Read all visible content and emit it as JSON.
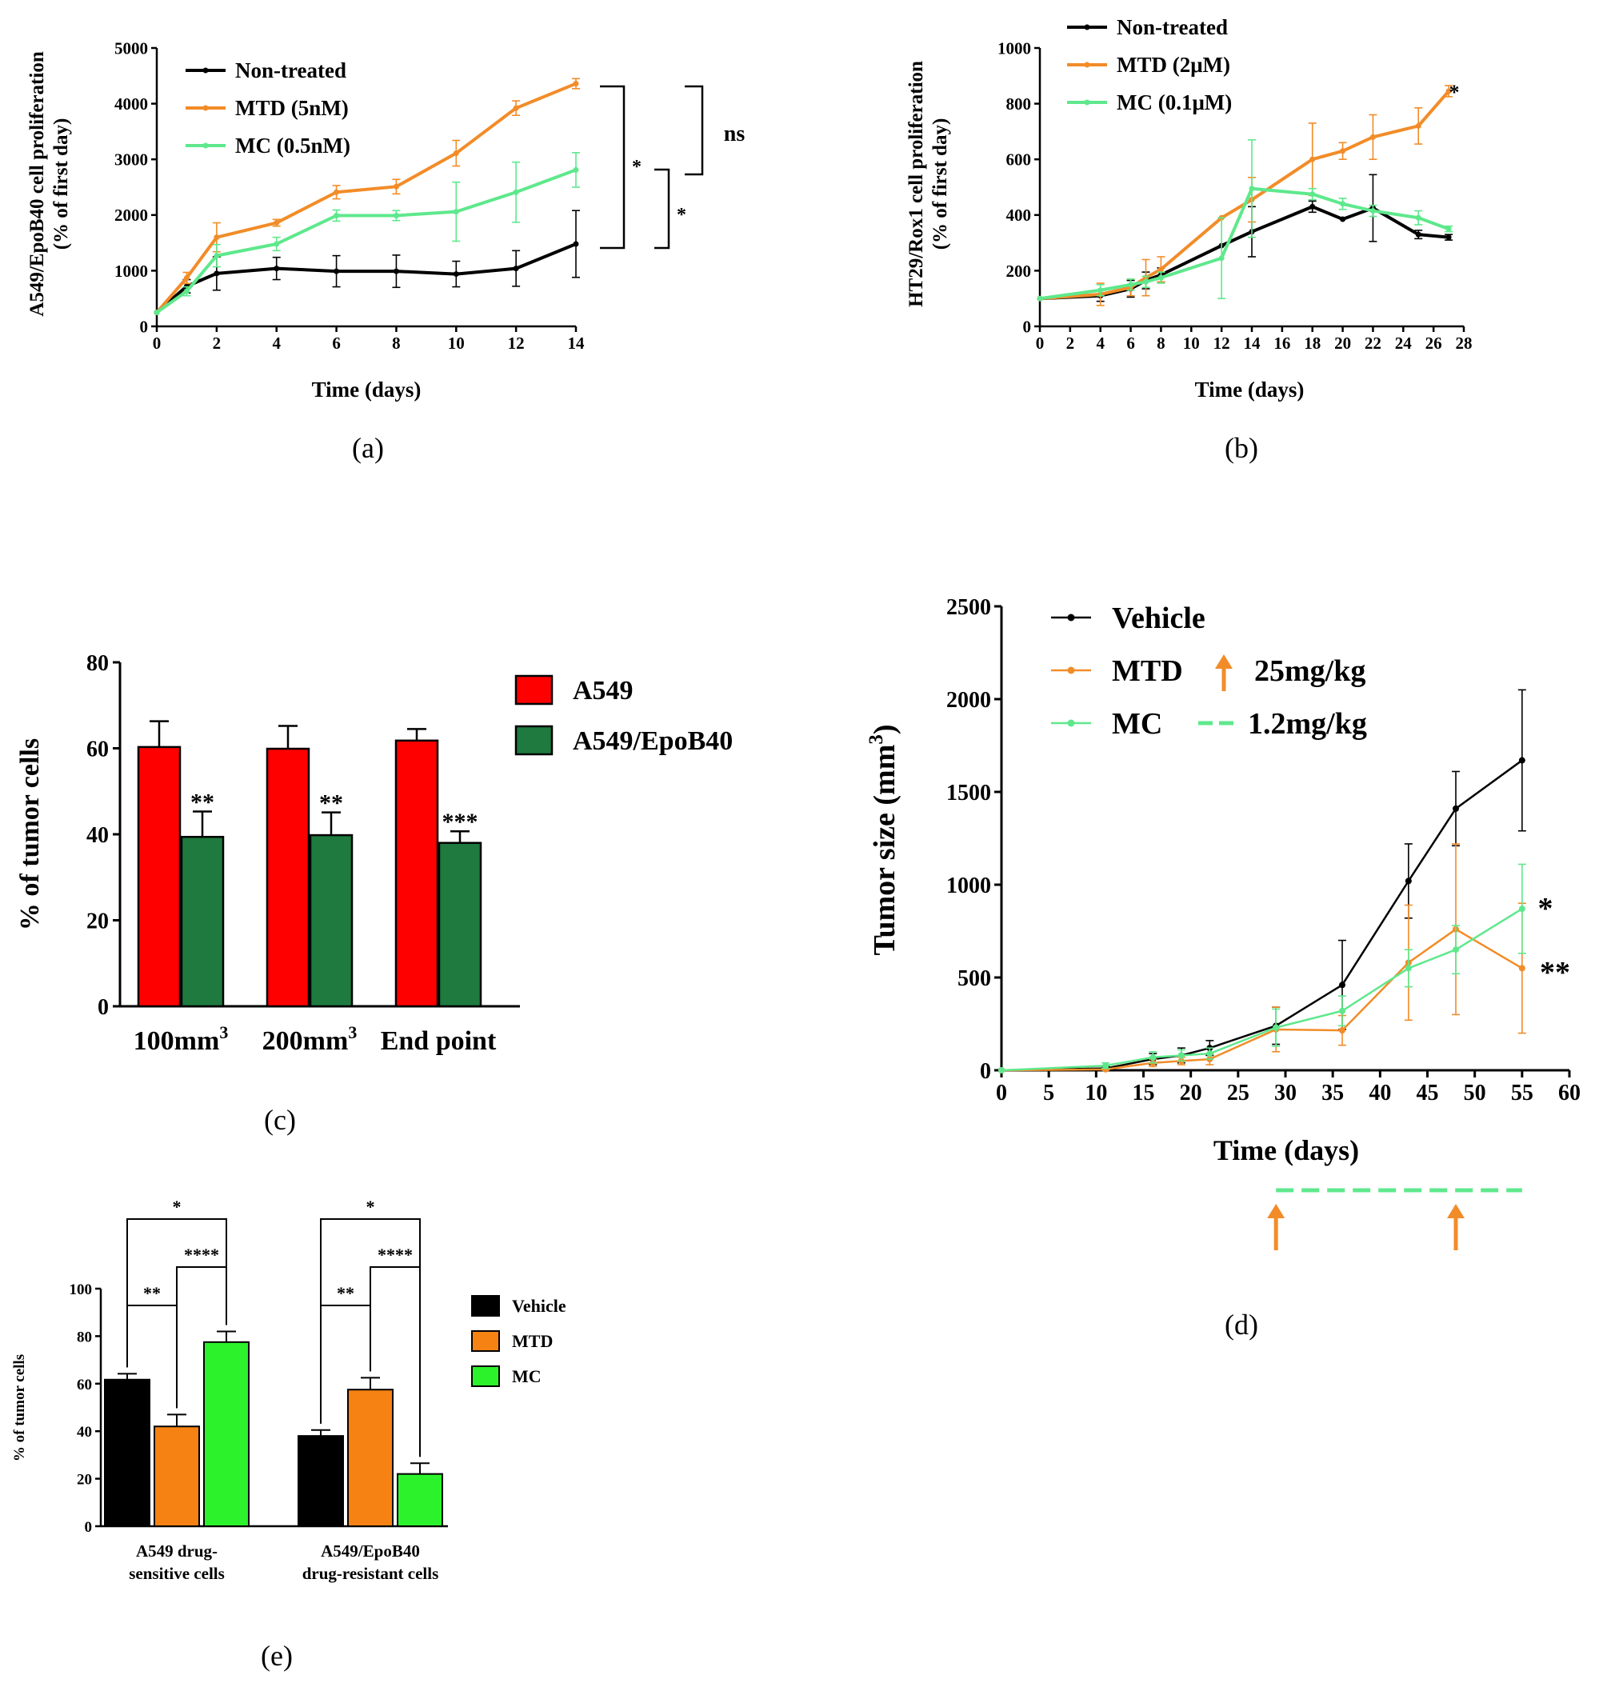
{
  "colors": {
    "black": "#000000",
    "orange": "#f28c28",
    "green_line": "#5ee88c",
    "red": "#ff0000",
    "dark_green": "#1e7a3e",
    "bright_green": "#2cf22c",
    "bar_orange": "#f58212"
  },
  "chart_data": [
    {
      "id": "a",
      "type": "line",
      "caption": "(a)",
      "xlabel": "Time (days)",
      "ylabel_lines": [
        "A549/EpoB40 cell proliferation",
        "(% of first day)"
      ],
      "xlim": [
        0,
        14
      ],
      "ylim": [
        0,
        5000
      ],
      "xticks": [
        0,
        2,
        4,
        6,
        8,
        10,
        12,
        14
      ],
      "yticks": [
        0,
        1000,
        2000,
        3000,
        4000,
        5000
      ],
      "series": [
        {
          "name": "Non-treated",
          "color": "#000000",
          "x": [
            0,
            1,
            2,
            4,
            6,
            8,
            10,
            12,
            14
          ],
          "y": [
            250,
            720,
            950,
            1040,
            990,
            990,
            940,
            1040,
            1480
          ],
          "err": [
            0,
            120,
            300,
            200,
            280,
            290,
            230,
            320,
            600
          ]
        },
        {
          "name": "MTD (5nM)",
          "color": "#f28c28",
          "x": [
            0,
            1,
            2,
            4,
            6,
            8,
            10,
            12,
            14
          ],
          "y": [
            250,
            870,
            1600,
            1860,
            2410,
            2510,
            3110,
            3920,
            4360
          ],
          "err": [
            0,
            100,
            260,
            60,
            120,
            130,
            230,
            130,
            90
          ]
        },
        {
          "name": "MC (0.5nM)",
          "color": "#5ee88c",
          "x": [
            0,
            1,
            2,
            4,
            6,
            8,
            10,
            12,
            14
          ],
          "y": [
            250,
            630,
            1270,
            1480,
            1990,
            1990,
            2060,
            2410,
            2810
          ],
          "err": [
            0,
            80,
            200,
            120,
            100,
            90,
            530,
            540,
            310
          ]
        }
      ],
      "annotations": [
        "*",
        "*",
        "ns"
      ]
    },
    {
      "id": "b",
      "type": "line",
      "caption": "(b)",
      "xlabel": "Time (days)",
      "ylabel_lines": [
        "HT29/Rox1 cell proliferation",
        "(% of first day)"
      ],
      "xlim": [
        0,
        28
      ],
      "ylim": [
        0,
        1000
      ],
      "xticks": [
        0,
        2,
        4,
        6,
        8,
        10,
        12,
        14,
        16,
        18,
        20,
        22,
        24,
        26,
        28
      ],
      "yticks": [
        0,
        200,
        400,
        600,
        800,
        1000
      ],
      "series": [
        {
          "name": "Non-treated",
          "color": "#000000",
          "x": [
            0,
            4,
            6,
            7,
            8,
            12,
            14,
            18,
            20,
            22,
            25,
            27
          ],
          "y": [
            100,
            110,
            135,
            165,
            185,
            290,
            340,
            430,
            385,
            425,
            330,
            320
          ],
          "err": [
            0,
            20,
            30,
            30,
            25,
            0,
            90,
            20,
            0,
            120,
            15,
            10
          ]
        },
        {
          "name": "MTD (2μM)",
          "color": "#f28c28",
          "x": [
            0,
            4,
            6,
            7,
            8,
            12,
            14,
            18,
            20,
            22,
            25,
            27
          ],
          "y": [
            100,
            115,
            140,
            175,
            205,
            390,
            455,
            600,
            630,
            680,
            720,
            845
          ],
          "err": [
            0,
            40,
            30,
            65,
            45,
            0,
            80,
            130,
            30,
            80,
            65,
            20
          ]
        },
        {
          "name": "MC (0.1μM)",
          "color": "#5ee88c",
          "x": [
            0,
            4,
            6,
            7,
            8,
            12,
            14,
            18,
            20,
            22,
            25,
            27
          ],
          "y": [
            100,
            130,
            150,
            160,
            175,
            245,
            495,
            475,
            440,
            415,
            390,
            350
          ],
          "err": [
            0,
            20,
            20,
            20,
            20,
            145,
            175,
            20,
            20,
            20,
            25,
            10
          ]
        }
      ],
      "annotations": [
        "*"
      ]
    },
    {
      "id": "c",
      "type": "bar",
      "caption": "(c)",
      "ylabel": "% of tumor cells",
      "categories": [
        "100mm",
        "200mm",
        "End point"
      ],
      "category_sup": [
        "3",
        "3",
        ""
      ],
      "ylim": [
        0,
        80
      ],
      "yticks": [
        0,
        20,
        40,
        60,
        80
      ],
      "series": [
        {
          "name": "A549",
          "color": "#ff0000",
          "values": [
            60.3,
            59.9,
            61.8
          ],
          "err": [
            6.0,
            5.3,
            2.7
          ]
        },
        {
          "name": "A549/EpoB40",
          "color": "#1e7a3e",
          "values": [
            39.4,
            39.8,
            38.0
          ],
          "err": [
            5.9,
            5.3,
            2.7
          ]
        }
      ],
      "annotations": [
        "**",
        "**",
        "***"
      ]
    },
    {
      "id": "d",
      "type": "line",
      "caption": "(d)",
      "xlabel": "Time (days)",
      "ylabel": "Tumor size (mm",
      "ylabel_sup": "3",
      "ylabel_close": ")",
      "xlim": [
        0,
        60
      ],
      "ylim": [
        0,
        2500
      ],
      "xticks": [
        0,
        5,
        10,
        15,
        20,
        25,
        30,
        35,
        40,
        45,
        50,
        55,
        60
      ],
      "yticks": [
        0,
        500,
        1000,
        1500,
        2000,
        2500
      ],
      "series": [
        {
          "name": "Vehicle",
          "color": "#000000",
          "x": [
            0,
            11,
            16,
            19,
            22,
            29,
            36,
            43,
            48,
            55
          ],
          "y": [
            0,
            10,
            60,
            80,
            120,
            240,
            460,
            1020,
            1410,
            1670
          ],
          "err": [
            0,
            10,
            30,
            40,
            40,
            100,
            240,
            200,
            200,
            380
          ]
        },
        {
          "name": "MTD",
          "color": "#f28c28",
          "x": [
            0,
            11,
            16,
            19,
            22,
            29,
            36,
            43,
            48,
            55
          ],
          "y": [
            0,
            5,
            40,
            50,
            60,
            220,
            215,
            580,
            760,
            550
          ],
          "err": [
            0,
            5,
            20,
            20,
            30,
            120,
            80,
            310,
            460,
            350
          ]
        },
        {
          "name": "MC",
          "color": "#5ee88c",
          "x": [
            0,
            11,
            16,
            19,
            22,
            29,
            36,
            43,
            48,
            55
          ],
          "y": [
            0,
            25,
            70,
            80,
            90,
            230,
            320,
            550,
            650,
            870
          ],
          "err": [
            0,
            15,
            30,
            30,
            30,
            100,
            80,
            100,
            130,
            240
          ]
        }
      ],
      "legend_dose": {
        "mtd": "25mg/kg",
        "mc": "1.2mg/kg"
      },
      "annotations": {
        "mc": "*",
        "mtd": "**"
      }
    },
    {
      "id": "e",
      "type": "bar",
      "caption": "(e)",
      "ylabel": "% of tumor cells",
      "categories": [
        [
          "A549 drug-",
          "sensitive cells"
        ],
        [
          "A549/EpoB40",
          "drug-resistant cells"
        ]
      ],
      "ylim": [
        0,
        100
      ],
      "yticks": [
        0,
        20,
        40,
        60,
        80,
        100
      ],
      "series": [
        {
          "name": "Vehicle",
          "color": "#000000",
          "values": [
            61.7,
            38.0
          ],
          "err": [
            2.5,
            2.5
          ]
        },
        {
          "name": "MTD",
          "color": "#f58212",
          "values": [
            42.0,
            57.5
          ],
          "err": [
            5.0,
            5.0
          ]
        },
        {
          "name": "MC",
          "color": "#2cf22c",
          "values": [
            77.5,
            22.0
          ],
          "err": [
            4.5,
            4.5
          ]
        }
      ],
      "annotations": [
        "*",
        "****",
        "**",
        "*",
        "****",
        "**"
      ]
    }
  ]
}
